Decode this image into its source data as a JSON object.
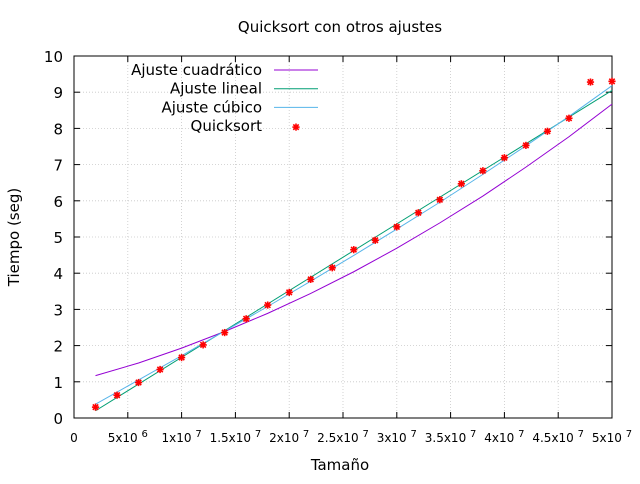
{
  "chart_data": {
    "type": "line",
    "title": "Quicksort con otros ajustes",
    "xlabel": "Tamaño",
    "ylabel": "Tiempo (seg)",
    "xlim": [
      0,
      50000000
    ],
    "ylim": [
      0,
      10
    ],
    "grid": true,
    "legend_position": "top-left",
    "x_ticks": [
      {
        "value": 0,
        "label": "0",
        "exp": ""
      },
      {
        "value": 5000000,
        "label": "5x10",
        "exp": "6"
      },
      {
        "value": 10000000,
        "label": "1x10",
        "exp": "7"
      },
      {
        "value": 15000000,
        "label": "1.5x10",
        "exp": "7"
      },
      {
        "value": 20000000,
        "label": "2x10",
        "exp": "7"
      },
      {
        "value": 25000000,
        "label": "2.5x10",
        "exp": "7"
      },
      {
        "value": 30000000,
        "label": "3x10",
        "exp": "7"
      },
      {
        "value": 35000000,
        "label": "3.5x10",
        "exp": "7"
      },
      {
        "value": 40000000,
        "label": "4x10",
        "exp": "7"
      },
      {
        "value": 45000000,
        "label": "4.5x10",
        "exp": "7"
      },
      {
        "value": 50000000,
        "label": "5x10",
        "exp": "7"
      }
    ],
    "y_ticks": [
      0,
      1,
      2,
      3,
      4,
      5,
      6,
      7,
      8,
      9,
      10
    ],
    "series": [
      {
        "name": "Ajuste cuadrático",
        "kind": "line",
        "color": "#9400d3",
        "x": [
          2000000,
          6000000,
          10000000,
          14000000,
          18000000,
          22000000,
          26000000,
          30000000,
          34000000,
          38000000,
          42000000,
          46000000,
          50000000
        ],
        "y": [
          1.17,
          1.52,
          1.93,
          2.39,
          2.89,
          3.44,
          4.04,
          4.69,
          5.39,
          6.13,
          6.93,
          7.77,
          8.67
        ]
      },
      {
        "name": "Ajuste lineal",
        "kind": "line",
        "color": "#009e73",
        "x": [
          2000000,
          50000000
        ],
        "y": [
          0.2,
          9.05
        ]
      },
      {
        "name": "Ajuste cúbico",
        "kind": "line",
        "color": "#56b4e9",
        "x": [
          2000000,
          6000000,
          10000000,
          14000000,
          18000000,
          22000000,
          26000000,
          30000000,
          34000000,
          38000000,
          42000000,
          46000000,
          50000000
        ],
        "y": [
          0.38,
          1.05,
          1.72,
          2.4,
          3.08,
          3.78,
          4.49,
          5.22,
          5.96,
          6.73,
          7.52,
          8.33,
          9.18
        ]
      },
      {
        "name": "Quicksort",
        "kind": "points",
        "color": "#ff0000",
        "x": [
          2000000,
          4000000,
          6000000,
          8000000,
          10000000,
          12000000,
          14000000,
          16000000,
          18000000,
          20000000,
          22000000,
          24000000,
          26000000,
          28000000,
          30000000,
          32000000,
          34000000,
          36000000,
          38000000,
          40000000,
          42000000,
          44000000,
          46000000,
          48000000,
          50000000
        ],
        "y": [
          0.3,
          0.63,
          0.98,
          1.34,
          1.67,
          2.02,
          2.36,
          2.74,
          3.12,
          3.47,
          3.83,
          4.15,
          4.65,
          4.91,
          5.28,
          5.67,
          6.03,
          6.47,
          6.83,
          7.19,
          7.53,
          7.92,
          8.28,
          9.28,
          9.3
        ]
      }
    ]
  }
}
